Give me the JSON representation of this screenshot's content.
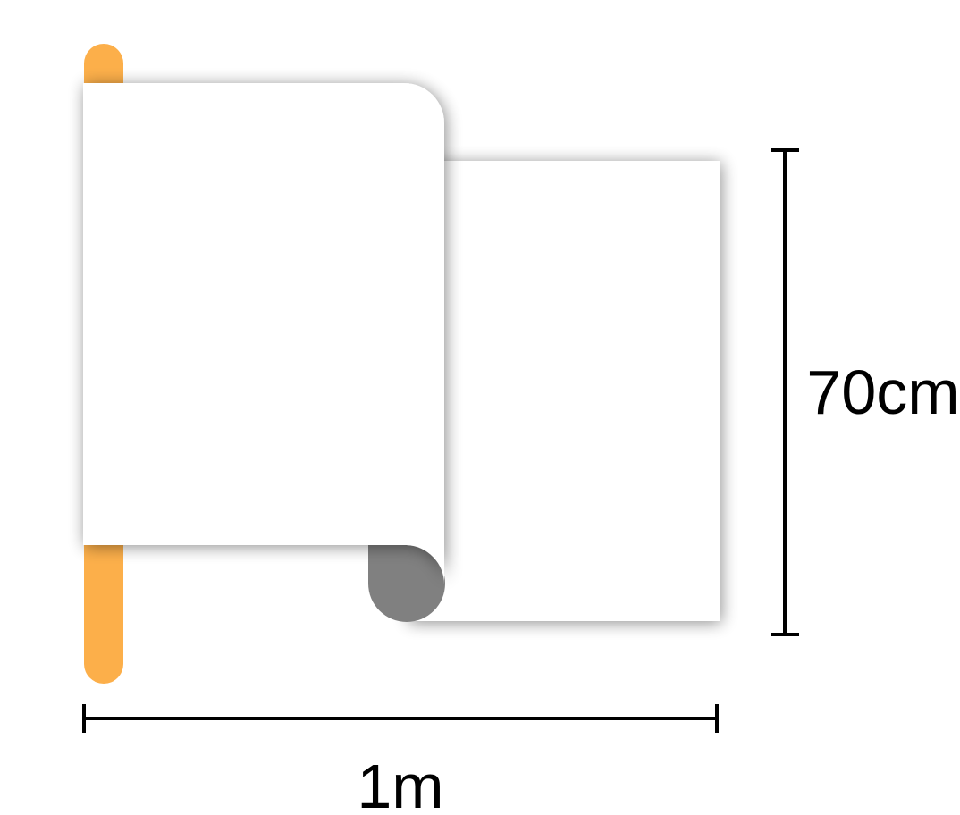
{
  "dimensions": {
    "height_label": "70cm",
    "width_label": "1m"
  },
  "colors": {
    "pole": "#FCAF4A",
    "sheet": "#FFFFFF",
    "sheet_curl": "#808080",
    "dimension_line": "#000000"
  }
}
